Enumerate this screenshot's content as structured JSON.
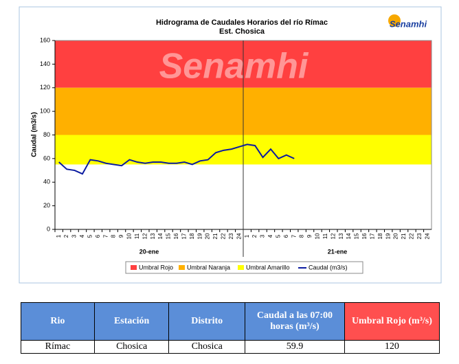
{
  "chart_data": {
    "type": "line",
    "title": "Hidrograma de Caudales Horarios del río Rímac",
    "subtitle": "Est. Chosica",
    "logo": "Senamhi",
    "y_label": "Caudal  (m3/s)",
    "categories": [
      "1",
      "2",
      "3",
      "4",
      "5",
      "6",
      "7",
      "8",
      "9",
      "10",
      "11",
      "12",
      "13",
      "14",
      "15",
      "16",
      "17",
      "18",
      "19",
      "20",
      "21",
      "22",
      "23",
      "24",
      "1",
      "2",
      "3",
      "4",
      "5",
      "6",
      "7",
      "8",
      "9",
      "10",
      "11",
      "12",
      "13",
      "14",
      "15",
      "16",
      "17",
      "18",
      "19",
      "20",
      "21",
      "22",
      "23",
      "24"
    ],
    "groups": [
      "20-ene",
      "21-ene"
    ],
    "ylim": [
      0,
      160
    ],
    "yticks": [
      0,
      20,
      40,
      60,
      80,
      100,
      120,
      140,
      160
    ],
    "bands": [
      {
        "name": "Umbral Rojo",
        "color": "#ff4040",
        "value": 120
      },
      {
        "name": "Umbral Naranja",
        "color": "#ffb000",
        "value": 80
      },
      {
        "name": "Umbral Amarillo",
        "color": "#ffff00",
        "value": 55
      }
    ],
    "series": [
      {
        "name": "Caudal (m3/s)",
        "color": "#0a1aa0",
        "values": [
          57,
          51,
          50,
          47,
          59,
          58,
          56,
          55,
          54,
          59,
          57,
          56,
          57,
          57,
          56,
          56,
          57,
          55,
          58,
          59,
          65,
          67,
          68,
          70,
          72,
          71,
          61,
          68,
          60,
          63,
          60,
          null,
          null,
          null,
          null,
          null,
          null,
          null,
          null,
          null,
          null,
          null,
          null,
          null,
          null,
          null,
          null,
          null
        ]
      }
    ]
  },
  "table": {
    "headers": [
      "Rio",
      "Estación",
      "Distrito",
      "Caudal a las 07:00 horas (m³/s)",
      "Umbral Rojo (m³/s)"
    ],
    "rows": [
      [
        "Rímac",
        "Chosica",
        "Chosica",
        "59.9",
        "120"
      ]
    ]
  }
}
